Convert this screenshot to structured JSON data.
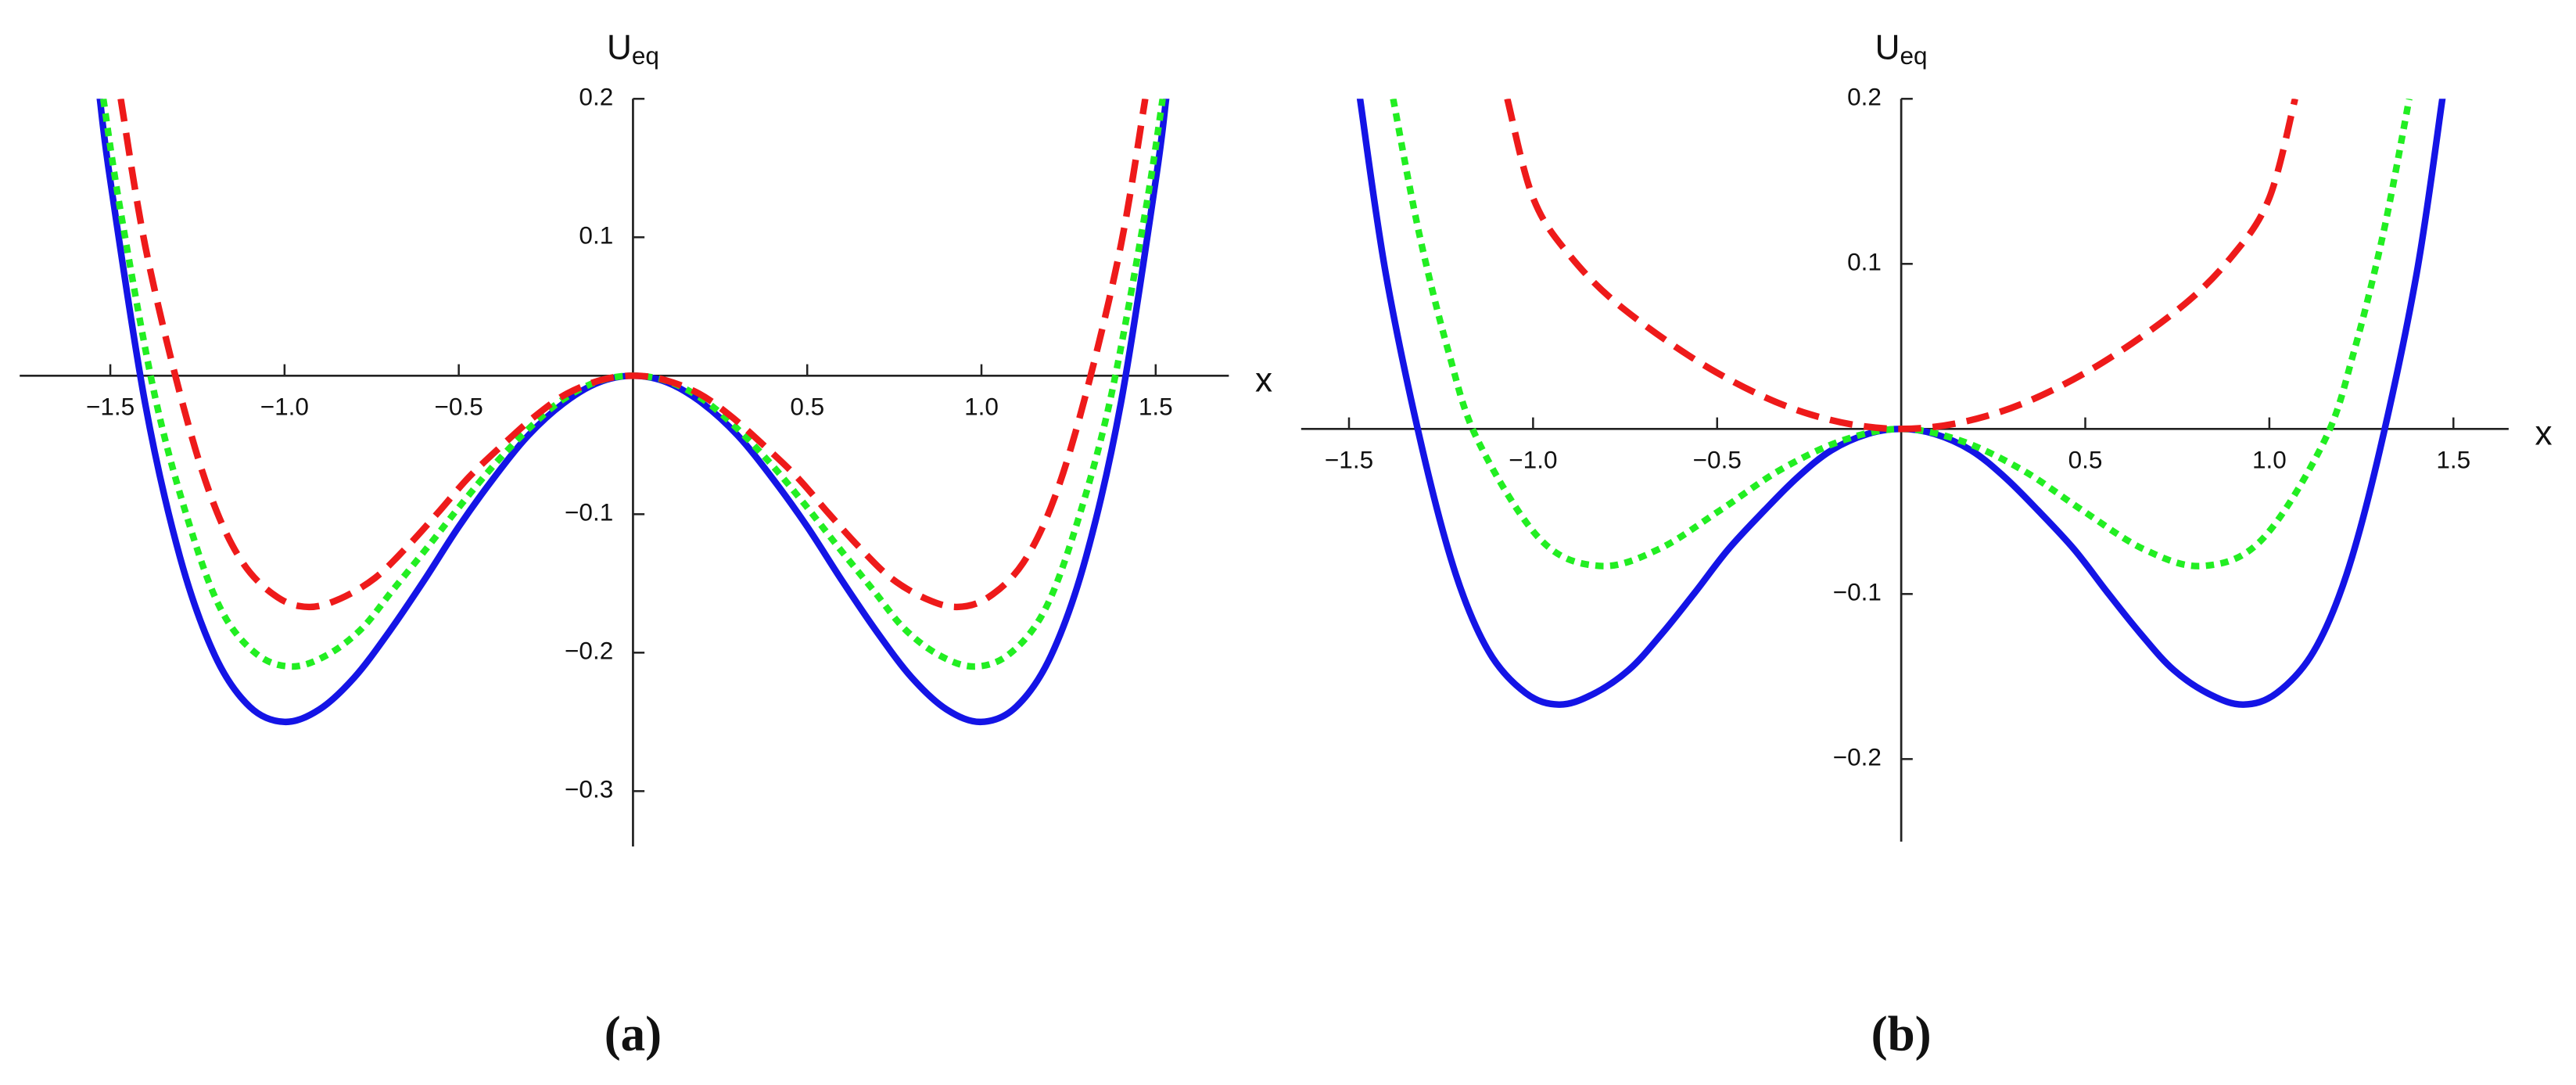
{
  "chart_data": [
    {
      "type": "line",
      "label": "(a)",
      "xlabel": "x",
      "ylabel": "U",
      "ylabel_sub": "eq",
      "xlim": [
        -1.76,
        1.71
      ],
      "ylim": [
        -0.34,
        0.2
      ],
      "xticks": [
        {
          "value": -1.5,
          "label": "−1.5"
        },
        {
          "value": -1.0,
          "label": "−1.0"
        },
        {
          "value": -0.5,
          "label": "−0.5"
        },
        0.5,
        {
          "value": 1.0,
          "label": "1.0"
        },
        1.5
      ],
      "yticks": [
        0.2,
        0.1,
        {
          "value": -0.1,
          "label": "−0.1"
        },
        {
          "value": -0.2,
          "label": "−0.2"
        },
        {
          "value": -0.3,
          "label": "−0.3"
        }
      ],
      "series": [
        {
          "color": "#1414e6",
          "style": "solid",
          "x": [
            -1.53,
            -1.5,
            -1.4,
            -1.3,
            -1.2,
            -1.1,
            -1.0,
            -0.9,
            -0.8,
            -0.7,
            -0.6,
            -0.5,
            -0.4,
            -0.3,
            -0.2,
            -0.1,
            0,
            0.1,
            0.2,
            0.3,
            0.4,
            0.5,
            0.6,
            0.7,
            0.8,
            0.9,
            1.0,
            1.1,
            1.2,
            1.3,
            1.4,
            1.5,
            1.53
          ],
          "values": [
            0.2,
            0.141,
            -0.02,
            -0.131,
            -0.202,
            -0.239,
            -0.25,
            -0.241,
            -0.218,
            -0.185,
            -0.148,
            -0.109,
            -0.074,
            -0.043,
            -0.02,
            -0.005,
            0,
            -0.005,
            -0.02,
            -0.043,
            -0.074,
            -0.109,
            -0.148,
            -0.185,
            -0.218,
            -0.241,
            -0.25,
            -0.239,
            -0.202,
            -0.131,
            -0.02,
            0.141,
            0.2
          ]
        },
        {
          "color": "#22ee22",
          "style": "dotted",
          "x": [
            -1.52,
            -1.47,
            -1.37,
            -1.27,
            -1.18,
            -1.08,
            -0.98,
            -0.88,
            -0.78,
            -0.69,
            -0.59,
            -0.49,
            -0.39,
            -0.29,
            -0.2,
            -0.1,
            0,
            0.1,
            0.2,
            0.29,
            0.39,
            0.49,
            0.59,
            0.69,
            0.78,
            0.88,
            0.98,
            1.08,
            1.18,
            1.27,
            1.37,
            1.47,
            1.52
          ],
          "values": [
            0.2,
            0.118,
            -0.017,
            -0.11,
            -0.17,
            -0.201,
            -0.21,
            -0.202,
            -0.183,
            -0.155,
            -0.124,
            -0.092,
            -0.062,
            -0.036,
            -0.017,
            -0.004,
            0,
            -0.004,
            -0.017,
            -0.036,
            -0.062,
            -0.092,
            -0.124,
            -0.155,
            -0.183,
            -0.202,
            -0.21,
            -0.201,
            -0.17,
            -0.11,
            -0.017,
            0.118,
            0.2
          ]
        },
        {
          "color": "#ee1a1a",
          "style": "dashed",
          "x": [
            -1.47,
            -1.4,
            -1.3,
            -1.21,
            -1.12,
            -1.02,
            -0.93,
            -0.84,
            -0.74,
            -0.65,
            -0.56,
            -0.47,
            -0.37,
            -0.28,
            -0.19,
            -0.09,
            0,
            0.09,
            0.19,
            0.28,
            0.37,
            0.47,
            0.56,
            0.65,
            0.74,
            0.84,
            0.93,
            1.02,
            1.12,
            1.21,
            1.3,
            1.4,
            1.47
          ],
          "values": [
            0.2,
            0.094,
            -0.013,
            -0.088,
            -0.135,
            -0.16,
            -0.167,
            -0.161,
            -0.146,
            -0.124,
            -0.099,
            -0.073,
            -0.049,
            -0.029,
            -0.013,
            -0.003,
            0,
            -0.003,
            -0.013,
            -0.029,
            -0.049,
            -0.073,
            -0.099,
            -0.124,
            -0.146,
            -0.161,
            -0.167,
            -0.16,
            -0.135,
            -0.088,
            -0.013,
            0.094,
            0.2
          ]
        }
      ]
    },
    {
      "type": "line",
      "label": "(b)",
      "xlabel": "x",
      "ylabel": "U",
      "ylabel_sub": "eq",
      "xlim": [
        -1.63,
        1.65
      ],
      "ylim": [
        -0.25,
        0.2
      ],
      "xticks": [
        {
          "value": -1.5,
          "label": "−1.5"
        },
        {
          "value": -1.0,
          "label": "−1.0"
        },
        {
          "value": -0.5,
          "label": "−0.5"
        },
        0.5,
        {
          "value": 1.0,
          "label": "1.0"
        },
        1.5
      ],
      "yticks": [
        0.2,
        0.1,
        {
          "value": -0.1,
          "label": "−0.1"
        },
        {
          "value": -0.2,
          "label": "−0.2"
        }
      ],
      "series": [
        {
          "color": "#1414e6",
          "style": "solid",
          "x": [
            -1.47,
            -1.4,
            -1.3,
            -1.21,
            -1.12,
            -1.02,
            -0.93,
            -0.84,
            -0.74,
            -0.65,
            -0.56,
            -0.47,
            -0.37,
            -0.28,
            -0.19,
            -0.09,
            0,
            0.09,
            0.19,
            0.28,
            0.37,
            0.47,
            0.56,
            0.65,
            0.74,
            0.84,
            0.93,
            1.02,
            1.12,
            1.21,
            1.3,
            1.4,
            1.47
          ],
          "values": [
            0.2,
            0.094,
            -0.013,
            -0.088,
            -0.135,
            -0.16,
            -0.167,
            -0.161,
            -0.146,
            -0.124,
            -0.099,
            -0.073,
            -0.049,
            -0.029,
            -0.013,
            -0.003,
            0,
            -0.003,
            -0.013,
            -0.029,
            -0.049,
            -0.073,
            -0.099,
            -0.124,
            -0.146,
            -0.161,
            -0.167,
            -0.16,
            -0.135,
            -0.088,
            -0.013,
            0.094,
            0.2
          ]
        },
        {
          "color": "#22ee22",
          "style": "dotted",
          "x": [
            -1.38,
            -1.31,
            -1.23,
            -1.15,
            -0.98,
            -0.82,
            -0.66,
            -0.49,
            -0.33,
            -0.16,
            0,
            0.16,
            0.33,
            0.49,
            0.66,
            0.82,
            0.98,
            1.15,
            1.23,
            1.31,
            1.38
          ],
          "values": [
            0.2,
            0.119,
            0.047,
            -0.007,
            -0.067,
            -0.083,
            -0.073,
            -0.049,
            -0.025,
            -0.007,
            0,
            -0.007,
            -0.025,
            -0.049,
            -0.073,
            -0.083,
            -0.067,
            -0.007,
            0.047,
            0.119,
            0.2
          ]
        },
        {
          "color": "#ee1a1a",
          "style": "dashed",
          "x": [
            -1.07,
            -1.0,
            -0.9,
            -0.75,
            -0.5,
            -0.25,
            0,
            0.25,
            0.5,
            0.75,
            0.9,
            1.0,
            1.07
          ],
          "values": [
            0.2,
            0.14,
            0.105,
            0.072,
            0.034,
            0.009,
            0,
            0.009,
            0.034,
            0.072,
            0.105,
            0.14,
            0.2
          ]
        }
      ]
    }
  ]
}
